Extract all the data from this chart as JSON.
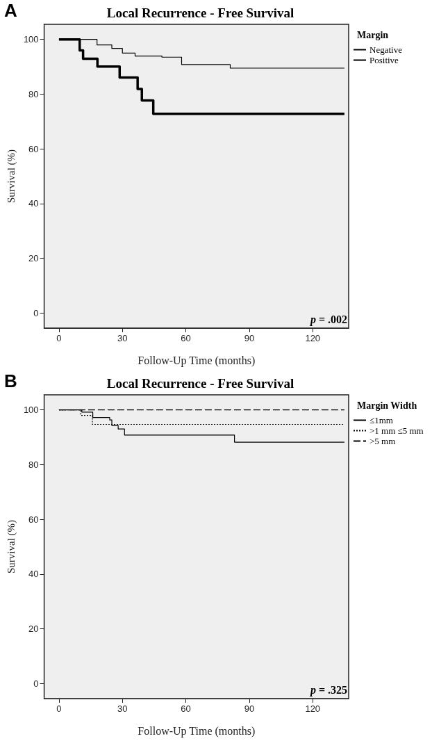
{
  "chart_data": [
    {
      "type": "step",
      "title": "Local Recurrence - Free Survival",
      "xlabel": "Follow-Up Time (months)",
      "ylabel": "Survival (%)",
      "legend_title": "Margin",
      "annotations": [
        "A",
        "p = .002"
      ],
      "xlim": [
        -7,
        137
      ],
      "ylim": [
        -5.5,
        105.5
      ],
      "xticks": [
        0,
        30,
        60,
        90,
        120
      ],
      "yticks": [
        0,
        20,
        40,
        60,
        80,
        100
      ],
      "grid": false,
      "legend": "right",
      "marker": "none",
      "series": [
        {
          "name": "Negative",
          "color": "#000000",
          "line_style": "solid",
          "x": [
            0,
            18,
            25,
            30,
            36,
            48.7,
            58,
            81,
            135
          ],
          "values": [
            100,
            98,
            96.7,
            95,
            93.9,
            93.5,
            90.8,
            89.5,
            89.5
          ]
        },
        {
          "name": "Positive",
          "color": "#000000",
          "line_style": "solid",
          "x": [
            0,
            9.8,
            11.4,
            18.2,
            28.7,
            37.2,
            39.2,
            44.6,
            135
          ],
          "values": [
            100,
            96,
            92.9,
            90.1,
            86.1,
            81.9,
            77.7,
            72.8,
            72.8
          ]
        }
      ]
    },
    {
      "type": "step",
      "title": "Local Recurrence - Free Survival",
      "xlabel": "Follow-Up Time (months)",
      "ylabel": "Survival (%)",
      "legend_title": "Margin Width",
      "annotations": [
        "B",
        "p = .325"
      ],
      "xlim": [
        -7,
        137
      ],
      "ylim": [
        -5.5,
        105.5
      ],
      "xticks": [
        0,
        30,
        60,
        90,
        120
      ],
      "yticks": [
        0,
        20,
        40,
        60,
        80,
        100
      ],
      "grid": false,
      "legend": "right",
      "marker": "none",
      "series": [
        {
          "name": "≤1mm",
          "color": "#000000",
          "line_style": "solid",
          "x": [
            0,
            10.8,
            16,
            24,
            25,
            28,
            31,
            83,
            135
          ],
          "values": [
            100,
            99.2,
            97.2,
            96.3,
            94.3,
            93,
            90.8,
            88.2,
            88.2
          ]
        },
        {
          "name": ">1 mm ≤5 mm",
          "color": "#000000",
          "line_style": "dotted",
          "x": [
            0,
            10.3,
            15.8,
            135
          ],
          "values": [
            100,
            98,
            94.7,
            94.7
          ]
        },
        {
          "name": ">5 mm",
          "color": "#000000",
          "line_style": "dashed",
          "x": [
            0,
            135
          ],
          "values": [
            100,
            100
          ]
        }
      ]
    }
  ]
}
